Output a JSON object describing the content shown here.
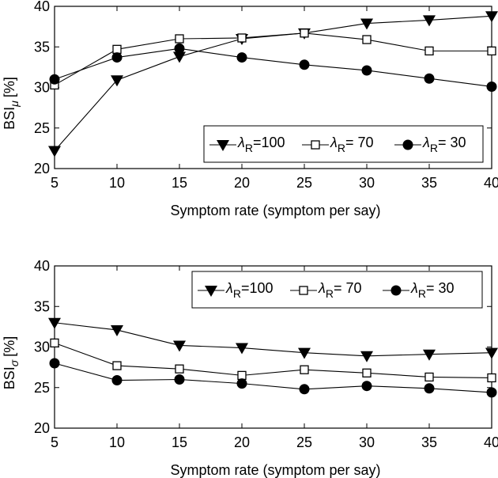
{
  "chart_data": [
    {
      "type": "line",
      "x": [
        5,
        10,
        15,
        20,
        25,
        30,
        35,
        40
      ],
      "xlabel": "Symptom rate (symptom per say)",
      "ylabel": "BSI",
      "ylabel_sub": "μ",
      "ylabel_unit": "[%]",
      "xlim": [
        5,
        40
      ],
      "ylim": [
        20,
        40
      ],
      "xticks": [
        "5",
        "10",
        "15",
        "20",
        "25",
        "30",
        "35",
        "40"
      ],
      "yticks": [
        "20",
        "25",
        "30",
        "35",
        "40"
      ],
      "grid": false,
      "legend_position": "bottom-right",
      "series": [
        {
          "name": "λR=100",
          "name_main": "λ",
          "name_sub": "R",
          "name_rest": "=100",
          "marker": "triangle-down",
          "values": [
            22.2,
            30.9,
            33.8,
            36.0,
            36.7,
            37.9,
            38.3,
            38.8
          ]
        },
        {
          "name": "λR= 70",
          "name_main": "λ",
          "name_sub": "R",
          "name_rest": "= 70",
          "marker": "square-open",
          "values": [
            30.3,
            34.7,
            36.0,
            36.1,
            36.7,
            35.9,
            34.5,
            34.5
          ]
        },
        {
          "name": "λR= 30",
          "name_main": "λ",
          "name_sub": "R",
          "name_rest": "= 30",
          "marker": "circle-filled",
          "values": [
            31.0,
            33.7,
            34.8,
            33.7,
            32.8,
            32.1,
            31.1,
            30.1
          ]
        }
      ]
    },
    {
      "type": "line",
      "x": [
        5,
        10,
        15,
        20,
        25,
        30,
        35,
        40
      ],
      "xlabel": "Symptom rate (symptom per say)",
      "ylabel": "BSI",
      "ylabel_sub": "σ",
      "ylabel_unit": "[%]",
      "xlim": [
        5,
        40
      ],
      "ylim": [
        20,
        40
      ],
      "xticks": [
        "5",
        "10",
        "15",
        "20",
        "25",
        "30",
        "35",
        "40"
      ],
      "yticks": [
        "20",
        "25",
        "30",
        "35",
        "40"
      ],
      "grid": false,
      "legend_position": "top-right",
      "series": [
        {
          "name": "λR=100",
          "name_main": "λ",
          "name_sub": "R",
          "name_rest": "=100",
          "marker": "triangle-down",
          "values": [
            33.0,
            32.1,
            30.2,
            29.9,
            29.3,
            28.9,
            29.1,
            29.3
          ]
        },
        {
          "name": "λR= 70",
          "name_main": "λ",
          "name_sub": "R",
          "name_rest": "= 70",
          "marker": "square-open",
          "values": [
            30.5,
            27.7,
            27.3,
            26.5,
            27.2,
            26.8,
            26.3,
            26.2
          ]
        },
        {
          "name": "λR= 30",
          "name_main": "λ",
          "name_sub": "R",
          "name_rest": "= 30",
          "marker": "circle-filled",
          "values": [
            28.0,
            25.9,
            26.0,
            25.5,
            24.8,
            25.2,
            24.9,
            24.4
          ]
        }
      ]
    }
  ]
}
